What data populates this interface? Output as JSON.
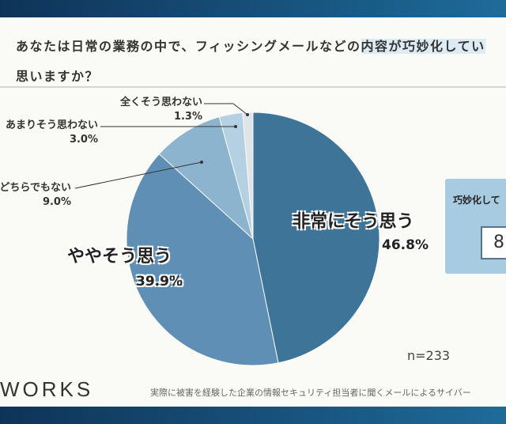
{
  "header": {
    "question_part1": "あなたは日常の業務の中で、フィッシングメールなどの",
    "question_highlight": "内容が巧妙化してい",
    "question_line2": "思いますか？"
  },
  "chart_data": {
    "type": "pie",
    "title": "あなたは日常の業務の中で、フィッシングメールなどの内容が巧妙化していると思いますか？",
    "slices": [
      {
        "label": "非常にそう思う",
        "value": 46.8,
        "value_label": "46.8%",
        "color": "#3f7499"
      },
      {
        "label": "ややそう思う",
        "value": 39.9,
        "value_label": "39.9%",
        "color": "#5f8fb5"
      },
      {
        "label": "どちらでもない",
        "value": 9.0,
        "value_label": "9.0%",
        "color": "#8db4cf"
      },
      {
        "label": "あまりそう思わない",
        "value": 3.0,
        "value_label": "3.0%",
        "color": "#b5d0e2"
      },
      {
        "label": "全くそう思わない",
        "value": 1.3,
        "value_label": "1.3%",
        "color": "#dfe4e8"
      }
    ],
    "sample_size": "n=233"
  },
  "summary": {
    "title": "巧妙化して",
    "value": "8"
  },
  "footer": {
    "logo": "WORKS",
    "source": "実際に被害を経験した企業の情報セキュリティ担当者に聞くメールによるサイバー"
  }
}
